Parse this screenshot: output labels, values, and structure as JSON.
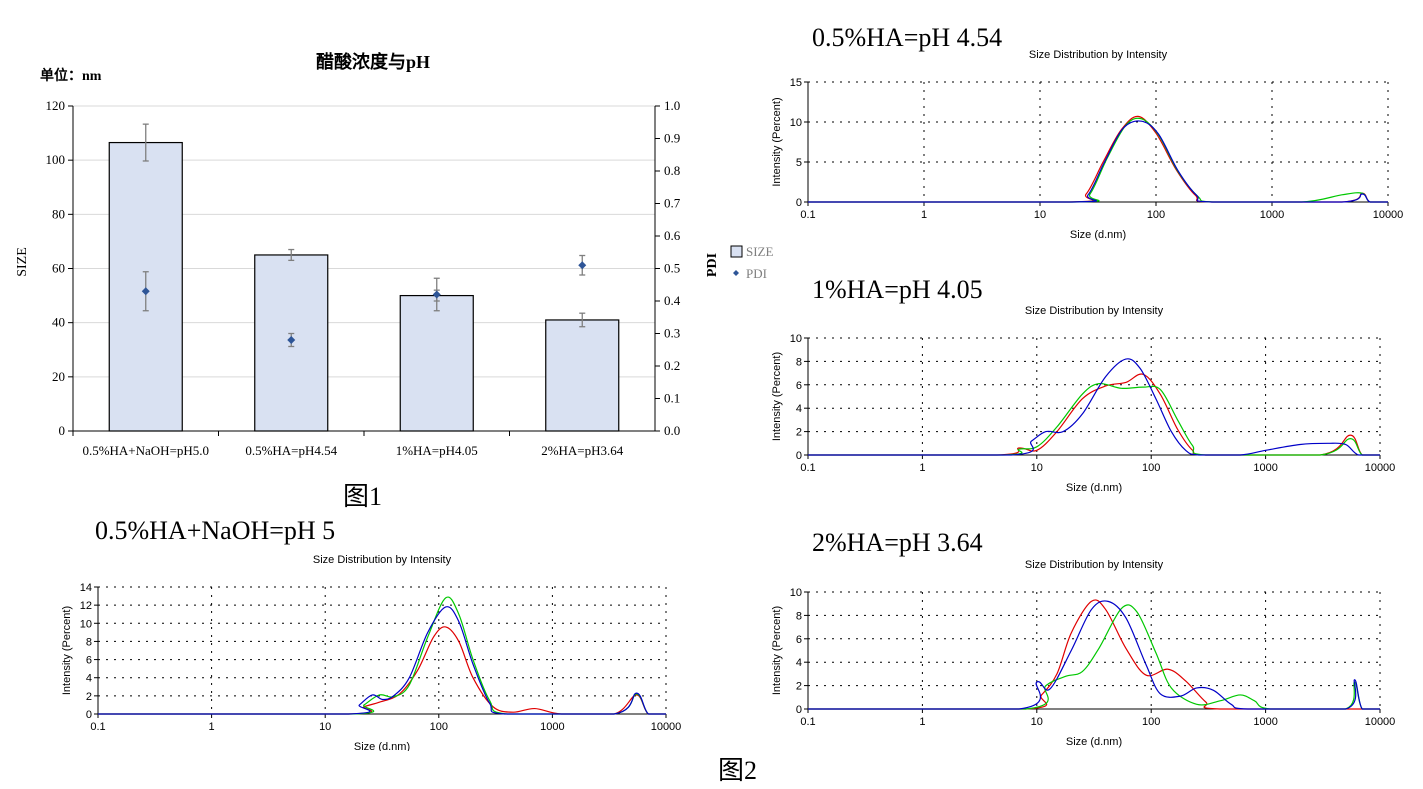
{
  "colors": {
    "bar_fill": "#d9e1f2",
    "pdi_marker": "#2e5597",
    "red": "#e00000",
    "green": "#00c800",
    "blue": "#0000c8",
    "grid": "#d9d9d9"
  },
  "fig1_caption": "图1",
  "fig2_caption": "图2",
  "chart_data": [
    {
      "type": "bar",
      "title": "醋酸浓度与pH",
      "unit_label": "单位：nm",
      "ylabel": "SIZE",
      "y2label": "PDI",
      "categories": [
        "0.5%HA+NaOH=pH5.0",
        "0.5%HA=pH4.54",
        "1%HA=pH4.05",
        "2%HA=pH3.64"
      ],
      "ylim": [
        0,
        120
      ],
      "y2lim": [
        0.0,
        1.0
      ],
      "yticks": [
        "0",
        "20",
        "40",
        "60",
        "80",
        "100",
        "120"
      ],
      "y2ticks": [
        "0.0",
        "0.1",
        "0.2",
        "0.3",
        "0.4",
        "0.5",
        "0.6",
        "0.7",
        "0.8",
        "0.9",
        "1.0"
      ],
      "legend": [
        "SIZE",
        "PDI"
      ],
      "series": [
        {
          "name": "SIZE",
          "kind": "bar",
          "values": [
            106.5,
            65,
            50,
            41
          ],
          "errors": [
            6.8,
            2,
            2,
            2.5
          ]
        },
        {
          "name": "PDI",
          "kind": "scatter",
          "values": [
            0.43,
            0.28,
            0.42,
            0.51
          ],
          "errors": [
            0.06,
            0.02,
            0.05,
            0.03
          ]
        }
      ]
    },
    {
      "type": "line",
      "label": "0.5%HA=pH 4.54",
      "title": "Size Distribution by Intensity",
      "xlabel": "Size (d.nm)",
      "ylabel": "Intensity (Percent)",
      "xscale": "log",
      "xlim": [
        0.1,
        10000
      ],
      "ylim": [
        0,
        15
      ],
      "xticks": [
        "0.1",
        "1",
        "10",
        "100",
        "1000",
        "10000"
      ],
      "yticks": [
        "0",
        "5",
        "10",
        "15"
      ],
      "series": [
        {
          "name": "red",
          "points": [
            [
              0.1,
              0
            ],
            [
              18,
              0
            ],
            [
              25,
              1
            ],
            [
              35,
              5
            ],
            [
              50,
              9
            ],
            [
              70,
              10.7
            ],
            [
              100,
              8.6
            ],
            [
              150,
              4
            ],
            [
              220,
              0.8
            ],
            [
              300,
              0
            ],
            [
              4000,
              0
            ],
            [
              6000,
              1.1
            ],
            [
              7000,
              0
            ],
            [
              10000,
              0
            ]
          ]
        },
        {
          "name": "green",
          "points": [
            [
              0.1,
              0
            ],
            [
              20,
              0
            ],
            [
              27,
              1
            ],
            [
              38,
              5.5
            ],
            [
              55,
              9.6
            ],
            [
              75,
              10.4
            ],
            [
              105,
              8.4
            ],
            [
              155,
              3.8
            ],
            [
              230,
              0.7
            ],
            [
              310,
              0
            ],
            [
              1800,
              0
            ],
            [
              4000,
              0.9
            ],
            [
              6000,
              1.1
            ],
            [
              7000,
              0
            ],
            [
              10000,
              0
            ]
          ]
        },
        {
          "name": "blue",
          "points": [
            [
              0.1,
              0
            ],
            [
              19,
              0
            ],
            [
              26,
              0.9
            ],
            [
              36,
              5
            ],
            [
              52,
              9.2
            ],
            [
              75,
              10.1
            ],
            [
              105,
              8.5
            ],
            [
              155,
              3.9
            ],
            [
              225,
              0.8
            ],
            [
              300,
              0
            ],
            [
              4000,
              0
            ],
            [
              6000,
              1.0
            ],
            [
              7000,
              0
            ],
            [
              10000,
              0
            ]
          ]
        }
      ]
    },
    {
      "type": "line",
      "label": "1%HA=pH 4.05",
      "title": "Size Distribution by Intensity",
      "xlabel": "Size (d.nm)",
      "ylabel": "Intensity (Percent)",
      "xscale": "log",
      "xlim": [
        0.1,
        10000
      ],
      "ylim": [
        0,
        10
      ],
      "xticks": [
        "0.1",
        "1",
        "10",
        "100",
        "1000",
        "10000"
      ],
      "yticks": [
        "0",
        "2",
        "4",
        "6",
        "8",
        "10"
      ],
      "series": [
        {
          "name": "red",
          "points": [
            [
              0.1,
              0
            ],
            [
              4.5,
              0
            ],
            [
              7,
              0.6
            ],
            [
              10,
              0.4
            ],
            [
              15,
              2
            ],
            [
              25,
              4.8
            ],
            [
              40,
              5.9
            ],
            [
              60,
              6.2
            ],
            [
              85,
              6.9
            ],
            [
              120,
              5.2
            ],
            [
              170,
              2.2
            ],
            [
              230,
              0.4
            ],
            [
              300,
              0
            ],
            [
              3000,
              0
            ],
            [
              5500,
              1.7
            ],
            [
              7000,
              0
            ],
            [
              10000,
              0
            ]
          ]
        },
        {
          "name": "green",
          "points": [
            [
              0.1,
              0
            ],
            [
              5,
              0
            ],
            [
              7,
              0.5
            ],
            [
              10,
              0.7
            ],
            [
              15,
              2.4
            ],
            [
              25,
              5.2
            ],
            [
              35,
              6.1
            ],
            [
              55,
              5.7
            ],
            [
              85,
              5.8
            ],
            [
              120,
              5.6
            ],
            [
              170,
              3
            ],
            [
              230,
              0.8
            ],
            [
              300,
              0
            ],
            [
              3000,
              0
            ],
            [
              5500,
              1.4
            ],
            [
              7000,
              0
            ],
            [
              10000,
              0
            ]
          ]
        },
        {
          "name": "blue",
          "points": [
            [
              0.1,
              0
            ],
            [
              6,
              0
            ],
            [
              9,
              1.2
            ],
            [
              12,
              2
            ],
            [
              17,
              2
            ],
            [
              25,
              3.5
            ],
            [
              40,
              6.7
            ],
            [
              60,
              8.2
            ],
            [
              80,
              7.4
            ],
            [
              110,
              4.8
            ],
            [
              150,
              2
            ],
            [
              200,
              0.4
            ],
            [
              260,
              0
            ],
            [
              600,
              0
            ],
            [
              1000,
              0.4
            ],
            [
              2000,
              0.9
            ],
            [
              3500,
              1.0
            ],
            [
              5000,
              0.9
            ],
            [
              6500,
              0
            ],
            [
              10000,
              0
            ]
          ]
        }
      ]
    },
    {
      "type": "line",
      "label": "0.5%HA+NaOH=pH 5",
      "title": "Size Distribution by Intensity",
      "xlabel": "Size (d.nm)",
      "ylabel": "Intensity (Percent)",
      "xscale": "log",
      "xlim": [
        0.1,
        10000
      ],
      "ylim": [
        0,
        14
      ],
      "xticks": [
        "0.1",
        "1",
        "10",
        "100",
        "1000",
        "10000"
      ],
      "yticks": [
        "0",
        "2",
        "4",
        "6",
        "8",
        "10",
        "12",
        "14"
      ],
      "series": [
        {
          "name": "red",
          "points": [
            [
              0.1,
              0
            ],
            [
              16,
              0
            ],
            [
              22,
              0.8
            ],
            [
              30,
              1.3
            ],
            [
              45,
              2.2
            ],
            [
              65,
              4.8
            ],
            [
              90,
              8.5
            ],
            [
              115,
              9.6
            ],
            [
              150,
              8
            ],
            [
              200,
              4
            ],
            [
              300,
              0.8
            ],
            [
              450,
              0.2
            ],
            [
              700,
              0.6
            ],
            [
              1200,
              0
            ],
            [
              3500,
              0
            ],
            [
              5500,
              2.1
            ],
            [
              7000,
              0
            ],
            [
              10000,
              0
            ]
          ]
        },
        {
          "name": "green",
          "points": [
            [
              0.1,
              0
            ],
            [
              17,
              0
            ],
            [
              22,
              1
            ],
            [
              30,
              2.1
            ],
            [
              40,
              1.9
            ],
            [
              55,
              3.2
            ],
            [
              80,
              8.5
            ],
            [
              115,
              12.8
            ],
            [
              150,
              11
            ],
            [
              200,
              6
            ],
            [
              280,
              1.5
            ],
            [
              400,
              0
            ],
            [
              3500,
              0
            ],
            [
              5500,
              2.2
            ],
            [
              7000,
              0
            ],
            [
              10000,
              0
            ]
          ]
        },
        {
          "name": "blue",
          "points": [
            [
              0.1,
              0
            ],
            [
              16,
              0
            ],
            [
              20,
              1
            ],
            [
              26,
              2.1
            ],
            [
              32,
              1.6
            ],
            [
              40,
              2
            ],
            [
              55,
              4
            ],
            [
              80,
              9
            ],
            [
              115,
              11.8
            ],
            [
              150,
              10.2
            ],
            [
              200,
              5.5
            ],
            [
              280,
              1.2
            ],
            [
              380,
              0
            ],
            [
              3500,
              0
            ],
            [
              5500,
              2.3
            ],
            [
              7000,
              0
            ],
            [
              10000,
              0
            ]
          ]
        }
      ]
    },
    {
      "type": "line",
      "label": "2%HA=pH 3.64",
      "title": "Size Distribution by Intensity",
      "xlabel": "Size (d.nm)",
      "ylabel": "Intensity (Percent)",
      "xscale": "log",
      "xlim": [
        0.1,
        10000
      ],
      "ylim": [
        0,
        10
      ],
      "xticks": [
        "0.1",
        "1",
        "10",
        "100",
        "1000",
        "10000"
      ],
      "yticks": [
        "0",
        "2",
        "4",
        "6",
        "8",
        "10"
      ],
      "series": [
        {
          "name": "red",
          "points": [
            [
              0.1,
              0
            ],
            [
              8,
              0
            ],
            [
              11,
              1.2
            ],
            [
              15,
              3
            ],
            [
              20,
              6.5
            ],
            [
              30,
              9.2
            ],
            [
              40,
              8.5
            ],
            [
              60,
              5.2
            ],
            [
              90,
              2.9
            ],
            [
              140,
              3.4
            ],
            [
              200,
              2.4
            ],
            [
              300,
              0.6
            ],
            [
              400,
              0
            ],
            [
              10000,
              0
            ]
          ]
        },
        {
          "name": "green",
          "points": [
            [
              0.1,
              0
            ],
            [
              8,
              0
            ],
            [
              12,
              2
            ],
            [
              18,
              2.8
            ],
            [
              25,
              3.2
            ],
            [
              35,
              5.2
            ],
            [
              55,
              8.6
            ],
            [
              75,
              8.3
            ],
            [
              110,
              4.8
            ],
            [
              150,
              1.8
            ],
            [
              250,
              0.4
            ],
            [
              400,
              0.7
            ],
            [
              600,
              1.2
            ],
            [
              800,
              0.7
            ],
            [
              1100,
              0
            ],
            [
              5000,
              0
            ],
            [
              6000,
              2.3
            ],
            [
              7000,
              0
            ],
            [
              10000,
              0
            ]
          ]
        },
        {
          "name": "blue",
          "points": [
            [
              0.1,
              0
            ],
            [
              7,
              0
            ],
            [
              10,
              2.3
            ],
            [
              13,
              1.7
            ],
            [
              20,
              5
            ],
            [
              30,
              8.5
            ],
            [
              42,
              9.2
            ],
            [
              60,
              7.8
            ],
            [
              90,
              3.8
            ],
            [
              120,
              1.3
            ],
            [
              180,
              1.1
            ],
            [
              250,
              1.8
            ],
            [
              350,
              1.6
            ],
            [
              500,
              0.4
            ],
            [
              700,
              0
            ],
            [
              5000,
              0
            ],
            [
              6000,
              2.5
            ],
            [
              7000,
              0
            ],
            [
              10000,
              0
            ]
          ]
        }
      ]
    }
  ]
}
